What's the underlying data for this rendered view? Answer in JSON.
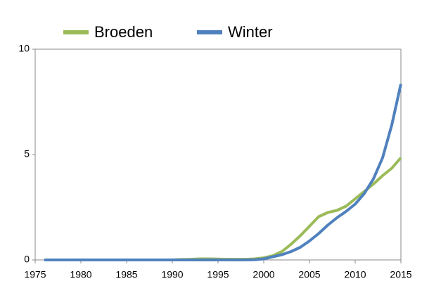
{
  "chart_data": {
    "type": "line",
    "x": [
      1976,
      1977,
      1978,
      1979,
      1980,
      1981,
      1982,
      1983,
      1984,
      1985,
      1986,
      1987,
      1988,
      1989,
      1990,
      1991,
      1992,
      1993,
      1994,
      1995,
      1996,
      1997,
      1998,
      1999,
      2000,
      2001,
      2002,
      2003,
      2004,
      2005,
      2006,
      2007,
      2008,
      2009,
      2010,
      2011,
      2012,
      2013,
      2014,
      2015
    ],
    "series": [
      {
        "name": "Broeden",
        "color": "#9bbb59",
        "values": [
          0,
          0,
          0,
          0,
          0,
          0,
          0,
          0,
          0,
          0,
          0,
          0,
          0,
          0,
          0,
          0.02,
          0.03,
          0.05,
          0.05,
          0.04,
          0.03,
          0.03,
          0.03,
          0.05,
          0.1,
          0.2,
          0.4,
          0.75,
          1.15,
          1.6,
          2.05,
          2.25,
          2.35,
          2.55,
          2.9,
          3.25,
          3.6,
          4.0,
          4.35,
          4.85
        ]
      },
      {
        "name": "Winter",
        "color": "#4f81bd",
        "values": [
          0,
          0,
          0,
          0,
          0,
          0,
          0,
          0,
          0,
          0,
          0,
          0,
          0,
          0,
          0,
          0,
          0,
          0,
          0,
          0,
          0,
          0,
          0,
          0.01,
          0.05,
          0.15,
          0.25,
          0.4,
          0.6,
          0.9,
          1.25,
          1.65,
          2.0,
          2.3,
          2.65,
          3.15,
          3.85,
          4.85,
          6.4,
          8.35
        ]
      }
    ],
    "xlim": [
      1975,
      2015
    ],
    "xticks": [
      1975,
      1980,
      1985,
      1990,
      1995,
      2000,
      2005,
      2010,
      2015
    ],
    "ylim": [
      0,
      10
    ],
    "yticks": [
      0,
      5,
      10
    ],
    "grid": false,
    "legend": "top"
  }
}
